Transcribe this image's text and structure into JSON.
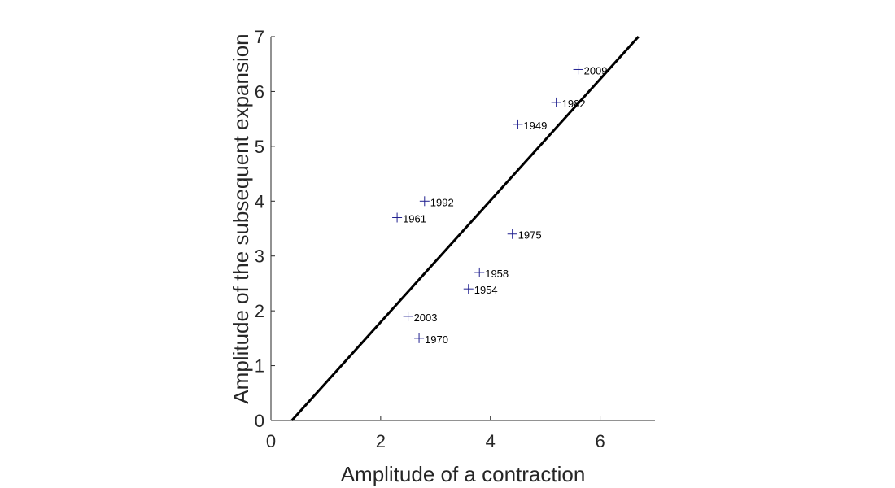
{
  "chart_data": {
    "type": "scatter",
    "title": "",
    "xlabel": "Amplitude of a contraction",
    "ylabel": "Amplitude of the subsequent expansion",
    "xlim": [
      0,
      7
    ],
    "ylim": [
      0,
      7
    ],
    "xticks": [
      0,
      2,
      4,
      6
    ],
    "yticks": [
      0,
      1,
      2,
      3,
      4,
      5,
      6,
      7
    ],
    "xtick_labels": [
      "0",
      "2",
      "4",
      "6"
    ],
    "ytick_labels": [
      "0",
      "1",
      "2",
      "3",
      "4",
      "5",
      "6",
      "7"
    ],
    "grid": false,
    "colors": {
      "marker": "#1f1f8f",
      "line": "#000000",
      "axis": "#262626"
    },
    "points": [
      {
        "label": "2009",
        "x": 5.6,
        "y": 6.4
      },
      {
        "label": "1982",
        "x": 5.2,
        "y": 5.8
      },
      {
        "label": "1949",
        "x": 4.5,
        "y": 5.4
      },
      {
        "label": "1992",
        "x": 2.8,
        "y": 4.0
      },
      {
        "label": "1961",
        "x": 2.3,
        "y": 3.7
      },
      {
        "label": "1975",
        "x": 4.4,
        "y": 3.4
      },
      {
        "label": "1958",
        "x": 3.8,
        "y": 2.7
      },
      {
        "label": "1954",
        "x": 3.6,
        "y": 2.4
      },
      {
        "label": "2003",
        "x": 2.5,
        "y": 1.9
      },
      {
        "label": "1970",
        "x": 2.7,
        "y": 1.5
      }
    ],
    "fit_line": {
      "x": [
        0.38,
        6.7
      ],
      "y": [
        0,
        7
      ]
    }
  }
}
